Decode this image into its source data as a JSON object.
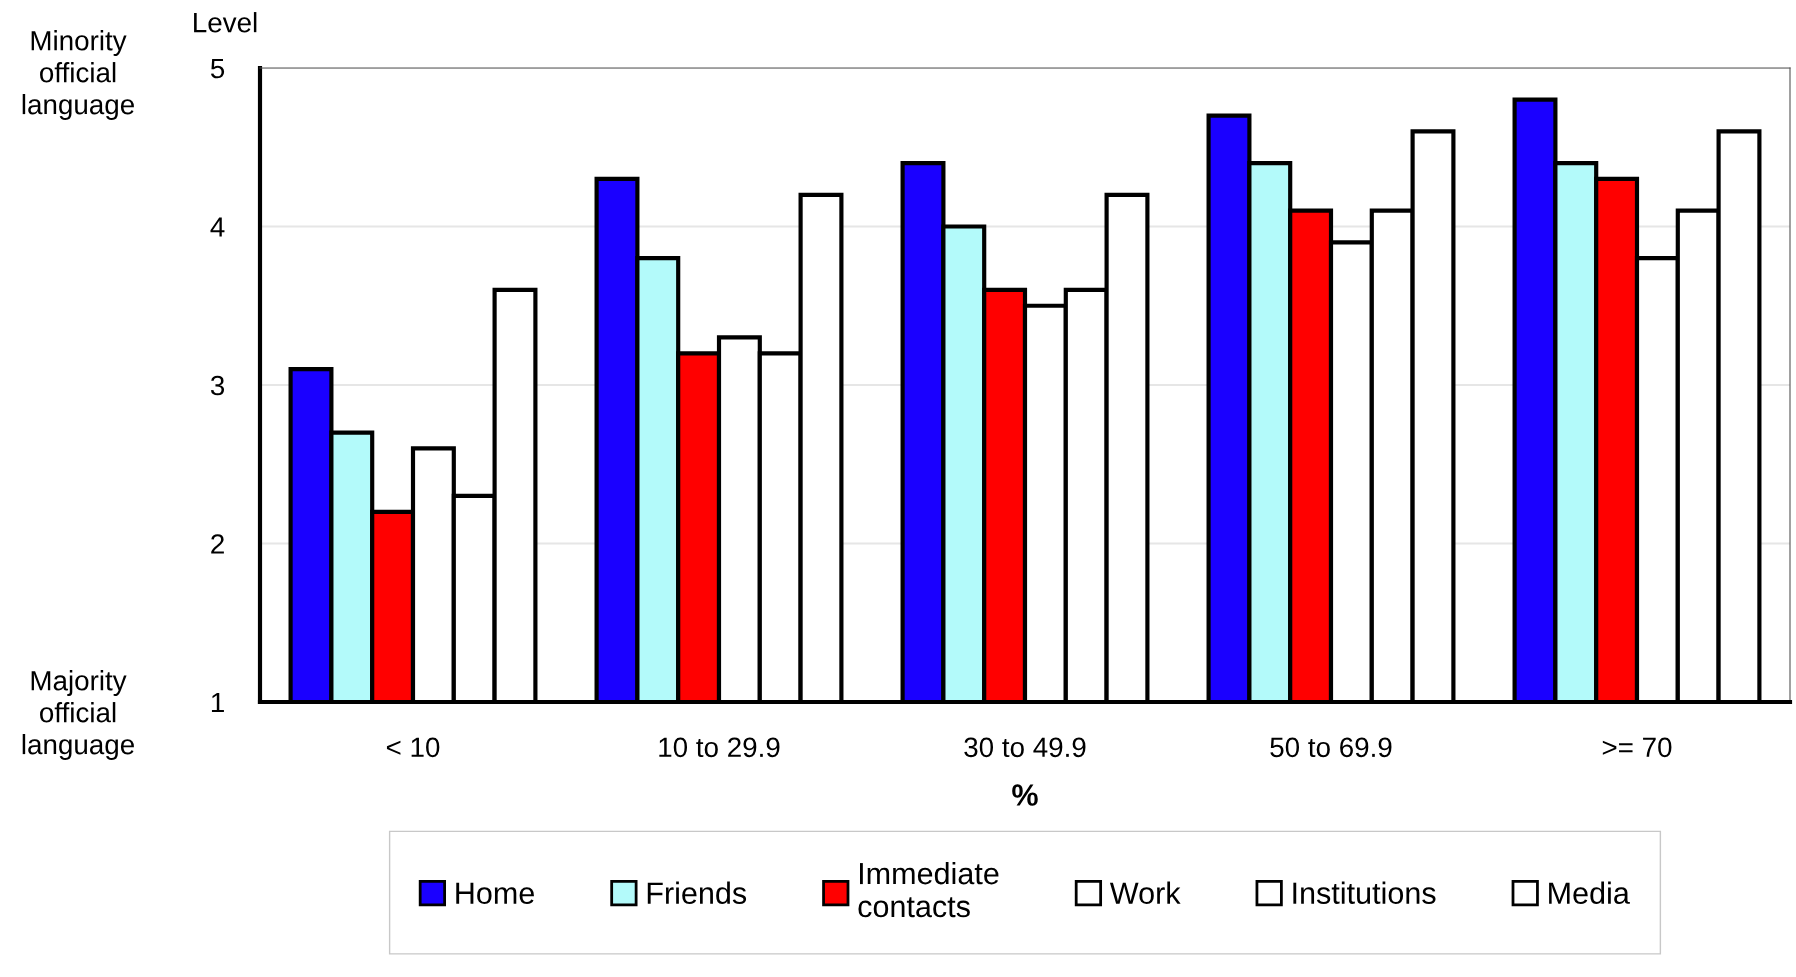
{
  "chart_data": {
    "type": "bar",
    "ylabel": "Level",
    "xlabel": "%",
    "categories": [
      "< 10",
      "10 to 29.9",
      "30 to 49.9",
      "50 to 69.9",
      ">= 70"
    ],
    "series": [
      {
        "name": "Home",
        "color": "#1a00ff",
        "values": [
          3.1,
          4.3,
          4.4,
          4.7,
          4.8
        ]
      },
      {
        "name": "Friends",
        "color": "#b3fafa",
        "values": [
          2.7,
          3.8,
          4.0,
          4.4,
          4.4
        ]
      },
      {
        "name": "Immediate\ncontacts",
        "color": "#ff0000",
        "values": [
          2.2,
          3.2,
          3.6,
          4.1,
          4.3
        ]
      },
      {
        "name": "Work",
        "color": "#ffffff",
        "values": [
          2.6,
          3.3,
          3.5,
          3.9,
          3.8
        ]
      },
      {
        "name": "Institutions",
        "color": "#ffffff",
        "values": [
          2.3,
          3.2,
          3.6,
          4.1,
          4.1
        ]
      },
      {
        "name": "Media",
        "color": "#ffffff",
        "values": [
          3.6,
          4.2,
          4.2,
          4.6,
          4.6
        ]
      }
    ],
    "ylim": [
      1,
      5
    ],
    "yticks": [
      1,
      2,
      3,
      4,
      5
    ],
    "grid": "y",
    "legend": "bottom",
    "annotations": [
      "Minority\nofficial\nlanguage",
      "Majority\nofficial\nlanguage"
    ]
  }
}
